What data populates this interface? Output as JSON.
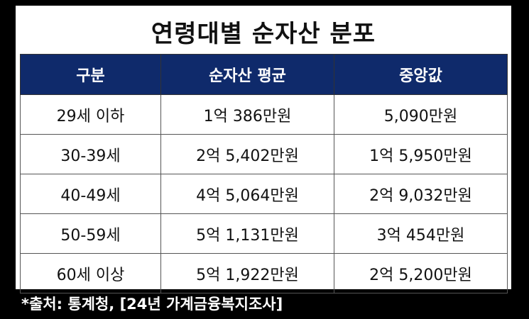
{
  "title": "연령대별 순자산 분포",
  "table": {
    "headers": [
      "구분",
      "순자산 평균",
      "중앙값"
    ],
    "rows": [
      [
        "29세 이하",
        "1억 386만원",
        "5,090만원"
      ],
      [
        "30-39세",
        "2억 5,402만원",
        "1억 5,950만원"
      ],
      [
        "40-49세",
        "4억 5,064만원",
        "2억 9,032만원"
      ],
      [
        "50-59세",
        "5억 1,131만원",
        "3억 454만원"
      ],
      [
        "60세 이상",
        "5억 1,922만원",
        "2억 5,200만원"
      ]
    ]
  },
  "source": "*출처: 통계청, [24년 가계금융복지조사]",
  "colors": {
    "header_bg": "#0f2a6b",
    "background": "#000000"
  }
}
